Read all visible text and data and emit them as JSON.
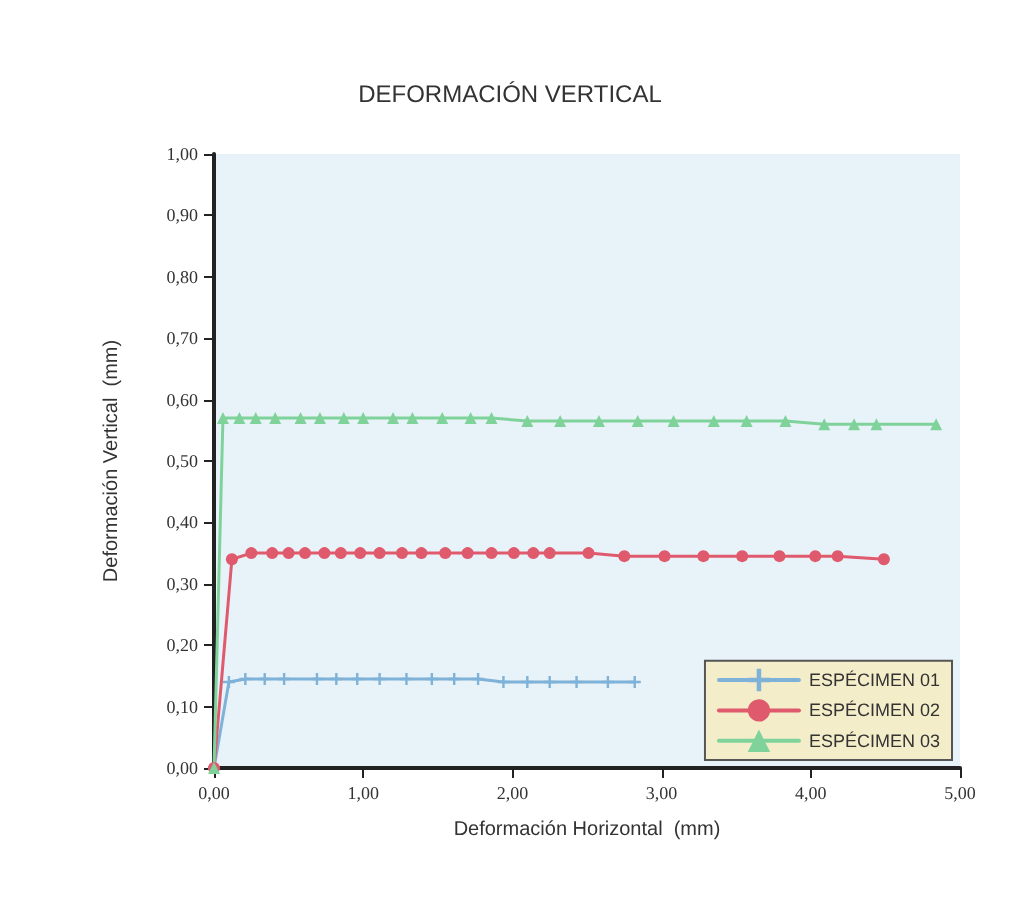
{
  "chart_data": {
    "type": "line",
    "title": "DEFORMACIÓN VERTICAL",
    "xlabel": "Deformación Horizontal  (mm)",
    "ylabel": "Deformación Vertical  (mm)",
    "xlim": [
      0,
      5
    ],
    "xticks": [
      {
        "value": 0,
        "label": "0,00"
      },
      {
        "value": 1,
        "label": "1,00"
      },
      {
        "value": 2,
        "label": "2,00"
      },
      {
        "value": 3,
        "label": "3,00"
      },
      {
        "value": 4,
        "label": "4,00"
      },
      {
        "value": 5,
        "label": "5,00"
      }
    ],
    "ylim": [
      0,
      1
    ],
    "yticks": [
      {
        "value": 0,
        "label": "0,00"
      },
      {
        "value": 0.1,
        "label": "0,10"
      },
      {
        "value": 0.2,
        "label": "0,20"
      },
      {
        "value": 0.3,
        "label": "0,30"
      },
      {
        "value": 0.4,
        "label": "0,40"
      },
      {
        "value": 0.5,
        "label": "0,50"
      },
      {
        "value": 0.6,
        "label": "0,60"
      },
      {
        "value": 0.7,
        "label": "0,70"
      },
      {
        "value": 0.8,
        "label": "0,80"
      },
      {
        "value": 0.9,
        "label": "0,90"
      },
      {
        "value": 1,
        "label": "1,00"
      }
    ],
    "grid": false,
    "legend": "bottom right",
    "line_style": "solid",
    "series": [
      {
        "name": "ESPÉCIMEN 01",
        "color": "#7fb2d8",
        "marker": "cross",
        "x": [
          0,
          0.1,
          0.21,
          0.34,
          0.47,
          0.69,
          0.82,
          0.96,
          1.11,
          1.29,
          1.46,
          1.61,
          1.77,
          1.94,
          2.1,
          2.25,
          2.43,
          2.64,
          2.82
        ],
        "values": [
          0,
          0.14,
          0.145,
          0.145,
          0.145,
          0.145,
          0.145,
          0.145,
          0.145,
          0.145,
          0.145,
          0.145,
          0.145,
          0.14,
          0.14,
          0.14,
          0.14,
          0.14,
          0.14
        ]
      },
      {
        "name": "ESPÉCIMEN 02",
        "color": "#e05a6e",
        "marker": "circle",
        "x": [
          0,
          0.12,
          0.25,
          0.39,
          0.5,
          0.61,
          0.74,
          0.85,
          0.98,
          1.11,
          1.26,
          1.39,
          1.55,
          1.7,
          1.86,
          2.01,
          2.14,
          2.25,
          2.51,
          2.75,
          3.02,
          3.28,
          3.54,
          3.79,
          4.03,
          4.18,
          4.49
        ],
        "values": [
          0,
          0.34,
          0.35,
          0.35,
          0.35,
          0.35,
          0.35,
          0.35,
          0.35,
          0.35,
          0.35,
          0.35,
          0.35,
          0.35,
          0.35,
          0.35,
          0.35,
          0.35,
          0.35,
          0.345,
          0.345,
          0.345,
          0.345,
          0.345,
          0.345,
          0.345,
          0.34
        ]
      },
      {
        "name": "ESPÉCIMEN 03",
        "color": "#7fd39a",
        "marker": "triangle",
        "x": [
          0,
          0.06,
          0.17,
          0.28,
          0.41,
          0.58,
          0.71,
          0.87,
          1.0,
          1.2,
          1.33,
          1.53,
          1.72,
          1.86,
          2.1,
          2.32,
          2.58,
          2.84,
          3.08,
          3.35,
          3.57,
          3.83,
          4.09,
          4.29,
          4.44,
          4.84
        ],
        "values": [
          0,
          0.57,
          0.57,
          0.57,
          0.57,
          0.57,
          0.57,
          0.57,
          0.57,
          0.57,
          0.57,
          0.57,
          0.57,
          0.57,
          0.565,
          0.565,
          0.565,
          0.565,
          0.565,
          0.565,
          0.565,
          0.565,
          0.56,
          0.56,
          0.56,
          0.56
        ]
      }
    ]
  }
}
